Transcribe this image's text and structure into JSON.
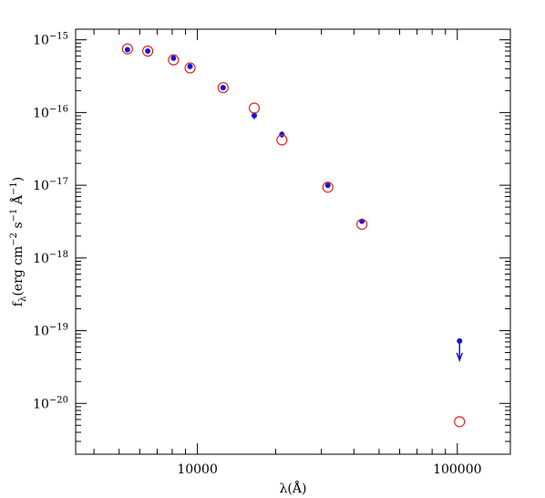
{
  "chart_data": {
    "type": "scatter",
    "xlabel": [
      {
        "text": "λ(Å)"
      }
    ],
    "ylabel": [
      {
        "text": "f"
      },
      {
        "text": "λ",
        "shift": "sub"
      },
      {
        "text": "(erg cm"
      },
      {
        "text": "−2",
        "shift": "sup"
      },
      {
        "text": " s"
      },
      {
        "text": "−1",
        "shift": "sup"
      },
      {
        "text": " Å"
      },
      {
        "text": "−1",
        "shift": "sup"
      },
      {
        "text": ")"
      }
    ],
    "log_x": true,
    "log_y": true,
    "xlim": [
      3400,
      160000
    ],
    "ylim": [
      2e-21,
      1.4e-15
    ],
    "xticks": [
      10000,
      100000
    ],
    "xminorticks": [
      4000,
      5000,
      6000,
      7000,
      8000,
      9000,
      20000,
      30000,
      40000,
      50000,
      60000,
      70000,
      80000,
      90000
    ],
    "yticks": [
      {
        "value": 1e-15,
        "label": "10",
        "exponent": "−15"
      },
      {
        "value": 1e-16,
        "label": "10",
        "exponent": "−16"
      },
      {
        "value": 1e-17,
        "label": "10",
        "exponent": "−17"
      },
      {
        "value": 1e-18,
        "label": "10",
        "exponent": "−18"
      },
      {
        "value": 1e-19,
        "label": "10",
        "exponent": "−19"
      },
      {
        "value": 1e-20,
        "label": "10",
        "exponent": "−20"
      }
    ],
    "yminorticks": [
      3e-21,
      4e-21,
      5e-21,
      6e-21,
      7e-21,
      8e-21,
      9e-21,
      2e-20,
      3e-20,
      4e-20,
      5e-20,
      6e-20,
      7e-20,
      8e-20,
      9e-20,
      2e-19,
      3e-19,
      4e-19,
      5e-19,
      6e-19,
      7e-19,
      8e-19,
      9e-19,
      2e-18,
      3e-18,
      4e-18,
      5e-18,
      6e-18,
      7e-18,
      8e-18,
      9e-18,
      2e-17,
      3e-17,
      4e-17,
      5e-17,
      6e-17,
      7e-17,
      8e-17,
      9e-17,
      2e-16,
      3e-16,
      4e-16,
      5e-16,
      6e-16,
      7e-16,
      8e-16,
      9e-16
    ],
    "x": [
      5380,
      6440,
      8090,
      9370,
      12560,
      16550,
      21140,
      31760,
      42950,
      102000
    ],
    "series": [
      {
        "color": "#1414d8",
        "marker": "filled",
        "values": [
          7.3e-16,
          7e-16,
          5.6e-16,
          4.3e-16,
          2.2e-16,
          9.1e-17,
          5e-17,
          1e-17,
          3.2e-18,
          7.2e-20
        ],
        "errors": [
          null,
          null,
          null,
          null,
          null,
          1e-17,
          5e-18,
          null,
          null,
          null
        ],
        "upper_limits": [
          false,
          false,
          false,
          false,
          false,
          false,
          false,
          false,
          false,
          true
        ]
      },
      {
        "color": "#e8231d",
        "marker": "open",
        "values": [
          7.5e-16,
          7e-16,
          5.3e-16,
          4.1e-16,
          2.2e-16,
          1.15e-16,
          4.2e-17,
          9.4e-18,
          2.9e-18,
          5.6e-21
        ]
      }
    ]
  }
}
